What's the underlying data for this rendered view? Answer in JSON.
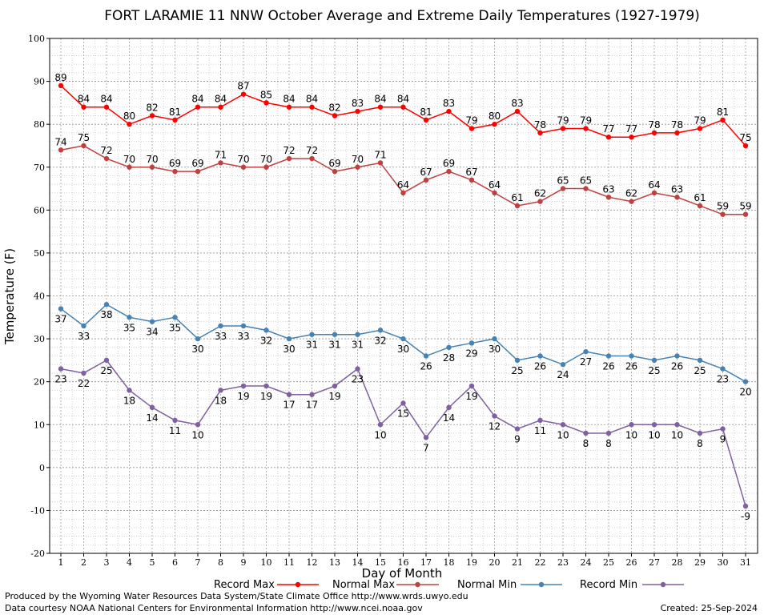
{
  "chart_data": {
    "type": "line",
    "title": "FORT LARAMIE 11 NNW October Average and Extreme Daily Temperatures (1927-1979)",
    "xlabel": "Day of Month",
    "ylabel": "Temperature (F)",
    "ylim": [
      -20,
      100
    ],
    "xlim": [
      1,
      31
    ],
    "grid": true,
    "legend_position": "bottom",
    "x": [
      1,
      2,
      3,
      4,
      5,
      6,
      7,
      8,
      9,
      10,
      11,
      12,
      13,
      14,
      15,
      16,
      17,
      18,
      19,
      20,
      21,
      22,
      23,
      24,
      25,
      26,
      27,
      28,
      29,
      30,
      31
    ],
    "series": [
      {
        "name": "Record Max",
        "color": "#ff0000",
        "values": [
          89,
          84,
          84,
          80,
          82,
          81,
          84,
          84,
          87,
          85,
          84,
          84,
          82,
          83,
          84,
          84,
          81,
          83,
          79,
          80,
          83,
          78,
          79,
          79,
          77,
          77,
          78,
          78,
          79,
          81,
          75
        ]
      },
      {
        "name": "Normal Max",
        "color": "#c04040",
        "values": [
          74,
          75,
          72,
          70,
          70,
          69,
          69,
          71,
          70,
          70,
          72,
          72,
          69,
          70,
          71,
          64,
          67,
          69,
          67,
          64,
          61,
          62,
          65,
          65,
          63,
          62,
          64,
          63,
          61,
          59,
          59
        ]
      },
      {
        "name": "Normal Min",
        "color": "#4682b4",
        "values": [
          37,
          33,
          38,
          35,
          34,
          35,
          30,
          33,
          33,
          32,
          30,
          31,
          31,
          31,
          32,
          30,
          26,
          28,
          29,
          30,
          25,
          26,
          24,
          27,
          26,
          26,
          25,
          26,
          25,
          23,
          20
        ]
      },
      {
        "name": "Record Min",
        "color": "#8060a0",
        "values": [
          23,
          22,
          25,
          18,
          14,
          11,
          10,
          18,
          19,
          19,
          17,
          17,
          19,
          23,
          10,
          15,
          7,
          14,
          19,
          12,
          9,
          11,
          10,
          8,
          8,
          10,
          10,
          10,
          8,
          9,
          -9
        ]
      }
    ]
  },
  "footer": {
    "left_line1": "Produced by the Wyoming Water Resources Data System/State Climate Office http://www.wrds.uwyo.edu",
    "left_line2": "Data courtesy NOAA National Centers for Environmental Information http://www.ncei.noaa.gov",
    "created": "Created: 25-Sep-2024"
  }
}
